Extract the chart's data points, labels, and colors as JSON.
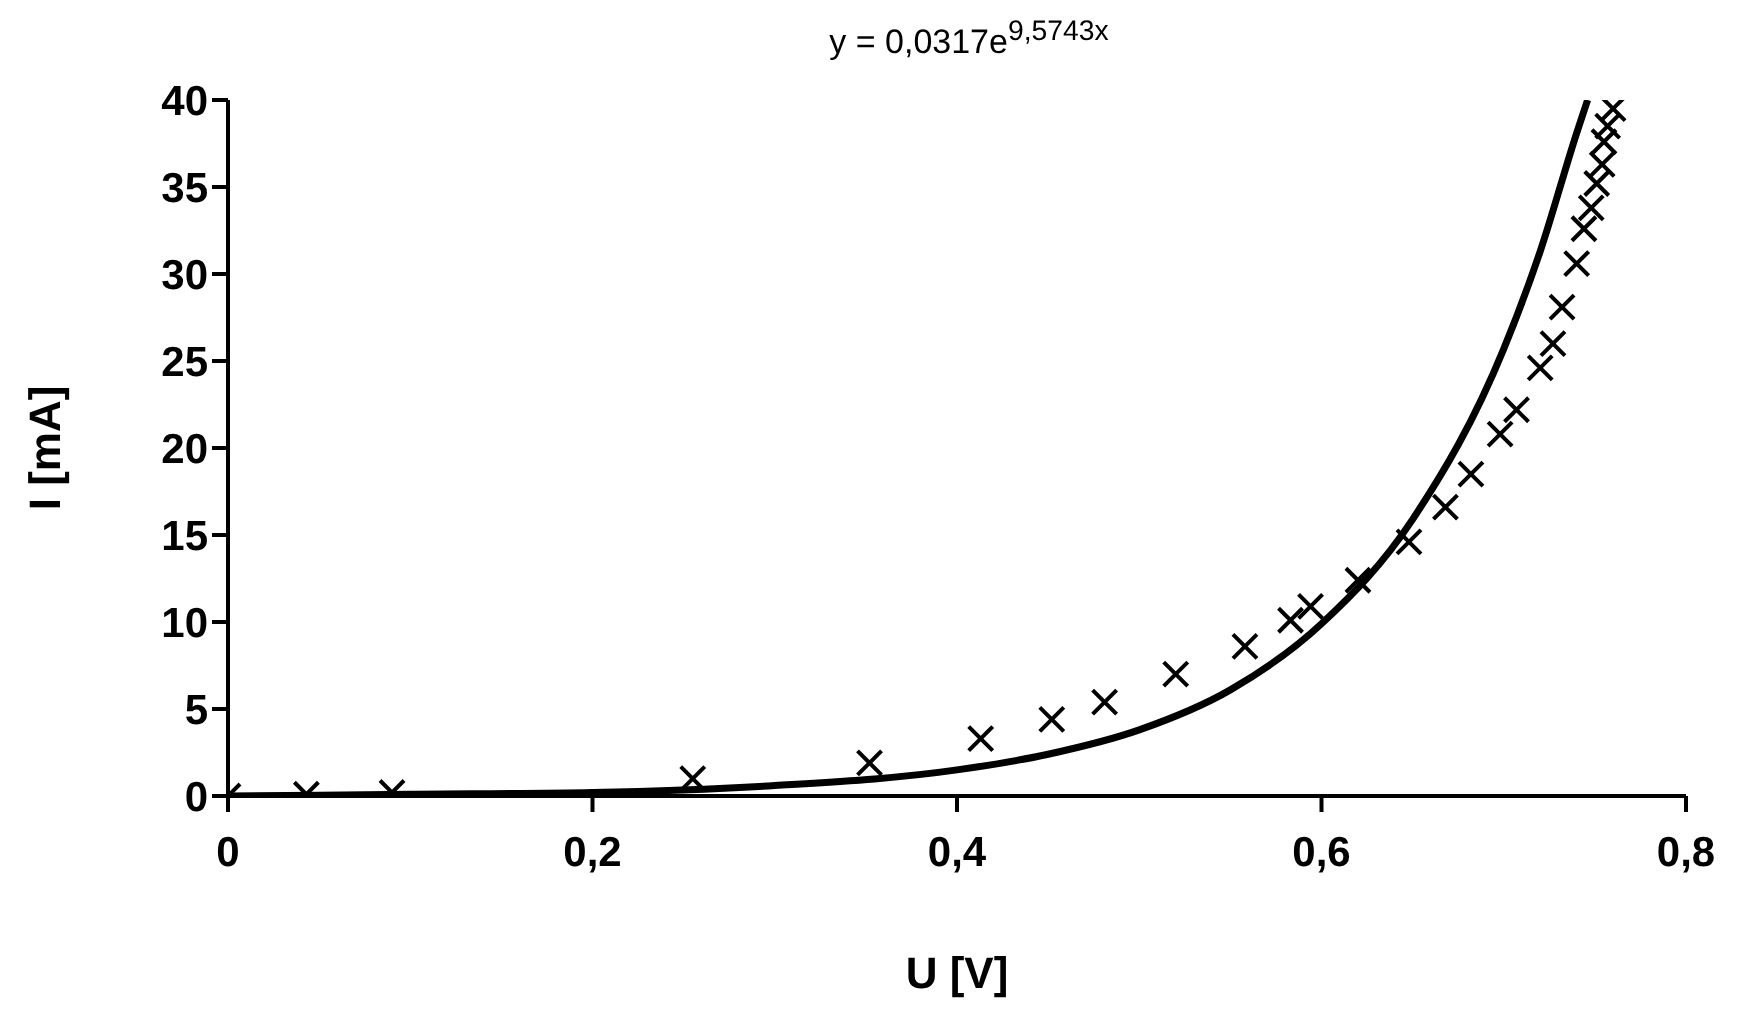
{
  "chart_data": {
    "type": "scatter",
    "xlabel": "U [V]",
    "ylabel": "I [mA]",
    "annotations": [
      "y = 0,0317e$^{9,5743x}$"
    ],
    "xlim": [
      0,
      0.8
    ],
    "xticks": [
      0,
      {
        "value": 0.2,
        "label": "0,2"
      },
      {
        "value": 0.4,
        "label": "0,4"
      },
      {
        "value": 0.6,
        "label": "0,6"
      },
      {
        "value": 0.8,
        "label": "0,8"
      }
    ],
    "ylim": [
      0,
      40
    ],
    "yticks": [
      0,
      5,
      10,
      15,
      20,
      25,
      30,
      35,
      40
    ],
    "grid": false,
    "legend": false,
    "series": [
      {
        "marker": "cross",
        "color": "#000000",
        "x": [
          0,
          0.043,
          0.09,
          0.255,
          0.352,
          0.413,
          0.452,
          0.481,
          0.52,
          0.558,
          0.583,
          0.594,
          0.62,
          0.648,
          0.668,
          0.682,
          0.698,
          0.707,
          0.72,
          0.727,
          0.732,
          0.74,
          0.744,
          0.748,
          0.751,
          0.754,
          0.755,
          0.757,
          0.76
        ],
        "values": [
          0,
          0.1,
          0.2,
          1.0,
          1.9,
          3.3,
          4.4,
          5.4,
          7.0,
          8.6,
          10.1,
          10.9,
          12.4,
          14.6,
          16.6,
          18.5,
          20.8,
          22.2,
          24.6,
          26.0,
          28.1,
          30.6,
          32.6,
          33.8,
          35.2,
          36.3,
          37.6,
          38.5,
          39.5
        ]
      },
      {
        "type": "line",
        "marker": "none",
        "line_style": "solid",
        "color": "#000000",
        "x": [
          0,
          0.1,
          0.2,
          0.3,
          0.4,
          0.45,
          0.5,
          0.55,
          0.6,
          0.65,
          0.7,
          0.72,
          0.74,
          0.746
        ],
        "values": [
          0,
          0.1,
          0.2,
          0.6,
          1.5,
          2.4,
          3.8,
          6.1,
          9.9,
          15.9,
          25.7,
          31.3,
          38.1,
          40
        ]
      }
    ]
  }
}
